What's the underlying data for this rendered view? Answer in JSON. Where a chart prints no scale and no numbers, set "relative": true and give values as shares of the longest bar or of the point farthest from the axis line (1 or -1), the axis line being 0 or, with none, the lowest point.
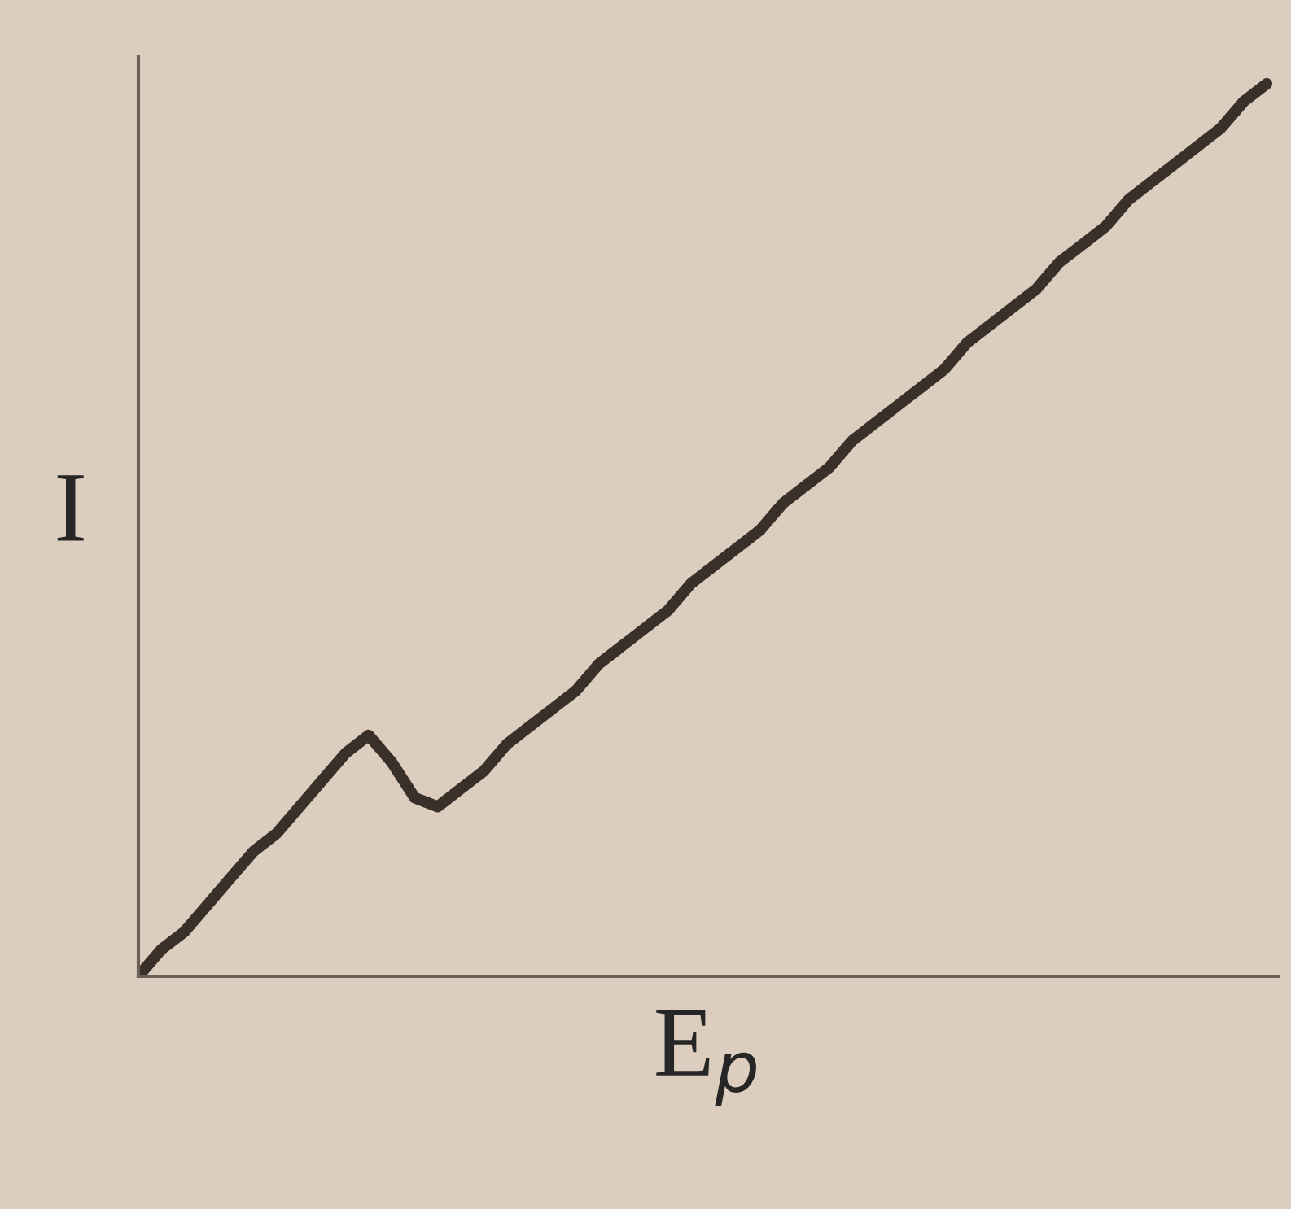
{
  "chart_data": {
    "type": "line",
    "relative": true,
    "xlabel": "E$_{p}$",
    "ylabel": "I",
    "tick_labels": false,
    "categories": [
      null,
      null,
      null,
      null,
      null,
      null,
      null,
      null,
      null,
      null,
      null,
      null,
      null,
      null,
      null,
      null,
      null,
      null,
      null,
      null,
      null,
      null,
      null,
      null,
      null,
      null,
      null,
      null,
      null,
      null,
      null,
      null,
      null,
      null,
      null,
      null,
      null,
      null,
      null,
      null,
      null,
      null,
      null,
      null,
      null,
      null,
      null,
      null,
      null,
      null
    ],
    "series": [
      {
        "color": "#3a302a",
        "values": [
          0,
          0.03,
          0.05,
          0.08,
          0.11,
          0.14,
          0.16,
          0.19,
          0.22,
          0.25,
          0.27,
          0.24,
          0.2,
          0.19,
          0.21,
          0.23,
          0.26,
          0.28,
          0.3,
          0.32,
          0.35,
          0.37,
          0.39,
          0.41,
          0.44,
          0.46,
          0.48,
          0.5,
          0.53,
          0.55,
          0.57,
          0.6,
          0.62,
          0.64,
          0.66,
          0.68,
          0.71,
          0.73,
          0.75,
          0.77,
          0.8,
          0.82,
          0.84,
          0.87,
          0.89,
          0.91,
          0.93,
          0.95,
          0.98,
          1
        ]
      }
    ]
  }
}
